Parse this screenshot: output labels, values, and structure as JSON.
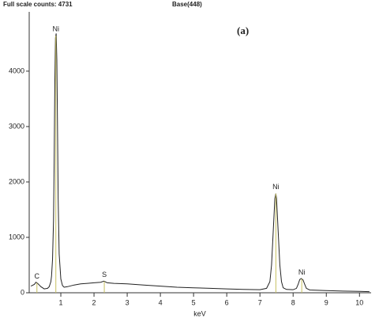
{
  "chart_data": {
    "type": "line",
    "header": "Full scale counts: 4731",
    "subheader": "Base(448)",
    "label": "(a)",
    "x_label": "keV",
    "x": [
      0.1,
      0.2,
      0.25,
      0.3,
      0.35,
      0.4,
      0.5,
      0.6,
      0.65,
      0.7,
      0.72,
      0.75,
      0.78,
      0.8,
      0.82,
      0.84,
      0.86,
      0.88,
      0.9,
      0.92,
      0.95,
      1.0,
      1.05,
      1.1,
      1.2,
      1.4,
      1.6,
      1.8,
      2.0,
      2.2,
      2.3,
      2.4,
      2.6,
      3.0,
      3.5,
      4.0,
      4.5,
      5.0,
      5.5,
      6.0,
      6.5,
      7.0,
      7.2,
      7.3,
      7.35,
      7.4,
      7.45,
      7.48,
      7.5,
      7.55,
      7.6,
      7.65,
      7.7,
      7.8,
      8.0,
      8.1,
      8.15,
      8.2,
      8.25,
      8.3,
      8.35,
      8.4,
      8.5,
      9.0,
      9.5,
      10.0,
      10.3
    ],
    "series": [
      {
        "color": "#222222",
        "values": [
          120,
          150,
          190,
          170,
          140,
          110,
          70,
          80,
          110,
          200,
          300,
          600,
          1300,
          2400,
          3800,
          4600,
          4680,
          4200,
          3000,
          1700,
          700,
          250,
          130,
          100,
          110,
          140,
          160,
          170,
          180,
          190,
          210,
          180,
          170,
          160,
          140,
          120,
          100,
          90,
          80,
          70,
          60,
          55,
          80,
          200,
          500,
          1100,
          1700,
          1790,
          1700,
          1100,
          500,
          200,
          90,
          60,
          55,
          80,
          150,
          240,
          257,
          230,
          150,
          80,
          50,
          40,
          30,
          25,
          20
        ]
      }
    ],
    "peaks": [
      {
        "label": "C",
        "x": 0.28
      },
      {
        "label": "Ni",
        "x": 0.85
      },
      {
        "label": "S",
        "x": 2.31
      },
      {
        "label": "Ni",
        "x": 7.48
      },
      {
        "label": "Ni",
        "x": 8.26
      }
    ],
    "peak_color": "#c8c060",
    "xlim": [
      0,
      10.35
    ],
    "xticks": [
      1,
      2,
      3,
      4,
      5,
      6,
      7,
      8,
      9,
      10
    ],
    "ylim": [
      0,
      5070
    ],
    "yticks": [
      0,
      1000,
      2000,
      3000,
      4000
    ]
  }
}
